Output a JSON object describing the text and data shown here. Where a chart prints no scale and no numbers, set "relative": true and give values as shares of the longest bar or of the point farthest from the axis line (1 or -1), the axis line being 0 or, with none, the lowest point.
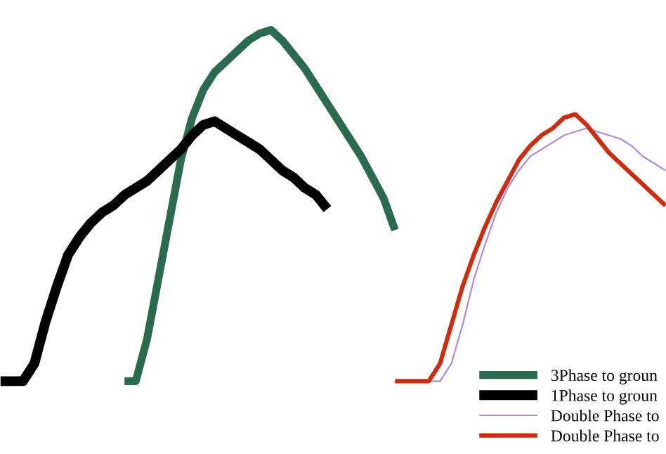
{
  "chart_data": {
    "type": "line",
    "relative": true,
    "legend": "bottom right",
    "marker": "none",
    "line_style": "solid",
    "categories": [
      null,
      null,
      null,
      null,
      null,
      null,
      null,
      null,
      null,
      null,
      null,
      null,
      null,
      null,
      null,
      null,
      null,
      null,
      null,
      null,
      null,
      null,
      null,
      null,
      null,
      null,
      null,
      null,
      null,
      null,
      null,
      null,
      null,
      null,
      null,
      null,
      null,
      null,
      null,
      null,
      null,
      null,
      null,
      null,
      null,
      null,
      null,
      null,
      null,
      null,
      null,
      null,
      null,
      null,
      null,
      null,
      null,
      null,
      null,
      null
    ],
    "series": [
      {
        "name": "3Phase to groun",
        "color": "#2a6b4f",
        "values": [
          null,
          null,
          null,
          null,
          null,
          null,
          null,
          null,
          null,
          null,
          null,
          0,
          0,
          0.12,
          0.29,
          0.46,
          0.63,
          0.75,
          0.83,
          0.88,
          0.91,
          0.94,
          0.97,
          0.99,
          1,
          0.97,
          0.93,
          0.89,
          0.84,
          0.79,
          0.74,
          0.69,
          0.64,
          0.58,
          0.52,
          0.43,
          null,
          null,
          null,
          null,
          null,
          null,
          null,
          null,
          null,
          null,
          null,
          null,
          null,
          null,
          null,
          null,
          null,
          null,
          null,
          null,
          null,
          null,
          null,
          null
        ]
      },
      {
        "name": "1Phase to groun",
        "color": "#000000",
        "values": [
          0,
          0,
          0,
          0.05,
          0.17,
          0.27,
          0.36,
          0.41,
          0.45,
          0.48,
          0.5,
          0.53,
          0.55,
          0.57,
          0.6,
          0.63,
          0.66,
          0.7,
          0.73,
          0.74,
          0.72,
          0.7,
          0.68,
          0.66,
          0.63,
          0.6,
          0.58,
          0.55,
          0.53,
          0.49,
          null,
          null,
          null,
          null,
          null,
          null,
          null,
          null,
          null,
          null,
          null,
          null,
          null,
          null,
          null,
          null,
          null,
          null,
          null,
          null,
          null,
          null,
          null,
          null,
          null,
          null,
          null,
          null,
          null,
          null
        ]
      },
      {
        "name": "Double Phase to",
        "color": "#b088e8",
        "values": [
          null,
          null,
          null,
          null,
          null,
          null,
          null,
          null,
          null,
          null,
          null,
          null,
          null,
          null,
          null,
          null,
          null,
          null,
          null,
          null,
          null,
          null,
          null,
          null,
          null,
          null,
          null,
          null,
          null,
          null,
          null,
          null,
          null,
          null,
          null,
          null,
          null,
          0,
          0,
          0,
          0.05,
          0.16,
          0.29,
          0.39,
          0.48,
          0.55,
          0.6,
          0.64,
          0.66,
          0.68,
          0.7,
          0.71,
          0.72,
          0.71,
          0.7,
          0.69,
          0.67,
          0.64,
          0.62,
          0.6
        ]
      },
      {
        "name": "Double Phase to",
        "color": "#d42a0c",
        "values": [
          null,
          null,
          null,
          null,
          null,
          null,
          null,
          null,
          null,
          null,
          null,
          null,
          null,
          null,
          null,
          null,
          null,
          null,
          null,
          null,
          null,
          null,
          null,
          null,
          null,
          null,
          null,
          null,
          null,
          null,
          null,
          null,
          null,
          null,
          null,
          0,
          0,
          0,
          0,
          0.05,
          0.16,
          0.27,
          0.36,
          0.44,
          0.51,
          0.57,
          0.63,
          0.67,
          0.7,
          0.72,
          0.75,
          0.76,
          0.73,
          0.69,
          0.65,
          0.62,
          0.59,
          0.56,
          0.53,
          0.5
        ]
      }
    ]
  }
}
